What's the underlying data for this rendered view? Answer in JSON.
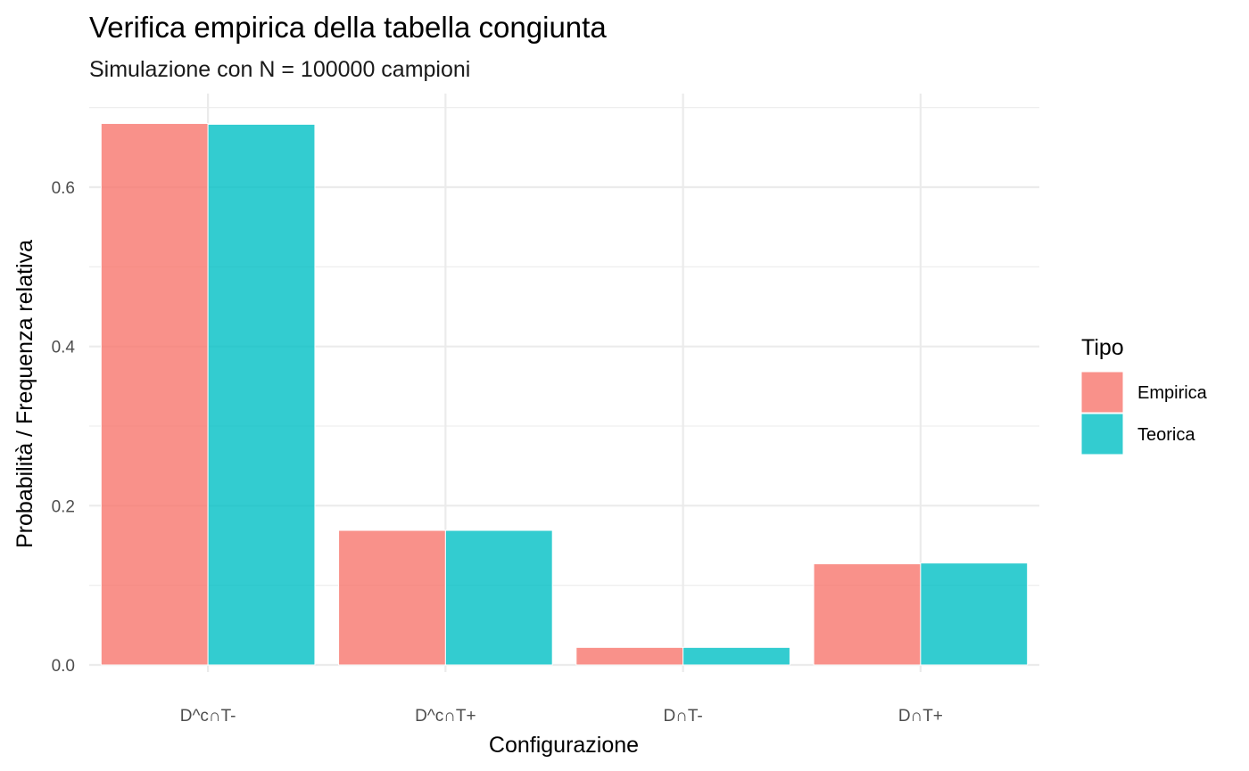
{
  "colors": {
    "series": [
      "#F8766D",
      "#00BFC4"
    ],
    "grid": "#EBEBEB",
    "background": "#FFFFFF"
  },
  "chart_data": {
    "type": "bar",
    "title": "Verifica empirica della tabella congiunta",
    "subtitle": "Simulazione con N = 100000 campioni",
    "xlabel": "Configurazione",
    "ylabel": "Probabilità / Frequenza relativa",
    "categories": [
      "D^c∩T-",
      "D^c∩T+",
      "D∩T-",
      "D∩T+"
    ],
    "series": [
      {
        "name": "Empirica",
        "values": [
          0.68,
          0.169,
          0.022,
          0.127
        ]
      },
      {
        "name": "Teorica",
        "values": [
          0.679,
          0.169,
          0.022,
          0.128
        ]
      }
    ],
    "ylim": [
      0,
      0.7
    ],
    "yticks": [
      0.0,
      0.2,
      0.4,
      0.6
    ],
    "ytick_labels": [
      "0.0",
      "0.2",
      "0.4",
      "0.6"
    ],
    "grid": true,
    "legend": {
      "title": "Tipo",
      "position": "right"
    }
  }
}
